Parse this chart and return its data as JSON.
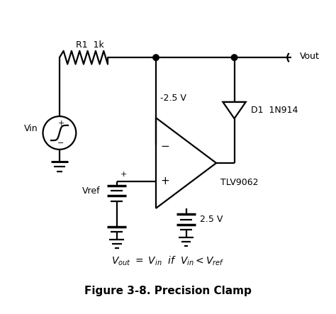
{
  "title": "Figure 3-8. Precision Clamp",
  "bg_color": "#ffffff",
  "line_color": "#000000",
  "fig_width": 4.74,
  "fig_height": 4.43,
  "dpi": 100,
  "labels": {
    "R1_1k": "R1  1k",
    "Vin": "Vin",
    "Vout": "Vout",
    "D1": "D1  1N914",
    "TLV9062": "TLV9062",
    "Vref": "Vref",
    "v_neg": "-2.5 V",
    "v_pos": "2.5 V"
  }
}
